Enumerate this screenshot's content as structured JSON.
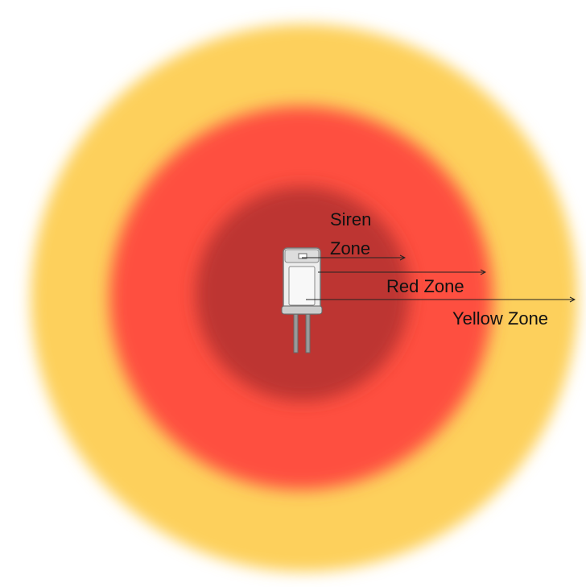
{
  "zones": [
    {
      "label_lines": [
        "Siren",
        "Zone"
      ]
    },
    {
      "label_lines": [
        "Red Zone"
      ]
    },
    {
      "label_lines": [
        "Yellow Zone"
      ]
    }
  ]
}
